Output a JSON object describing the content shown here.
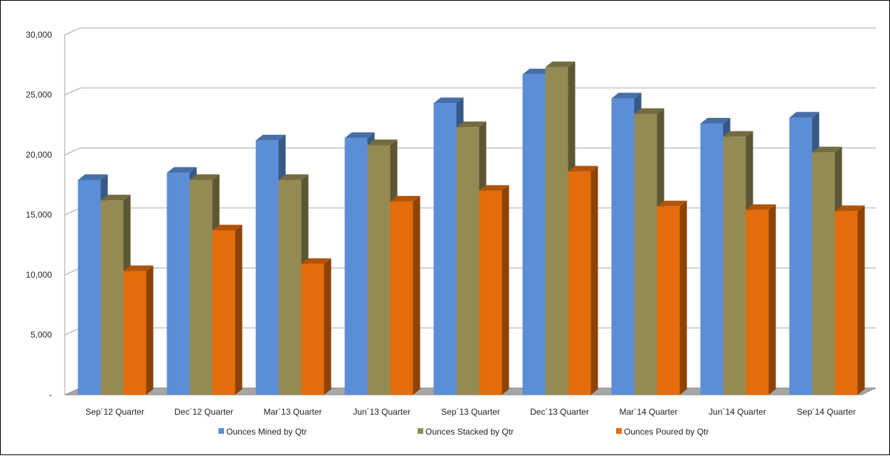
{
  "chart_data": {
    "type": "bar",
    "title": "",
    "xlabel": "",
    "ylabel": "",
    "ylim": [
      0,
      30000
    ],
    "yticks": [
      0,
      5000,
      10000,
      15000,
      20000,
      25000,
      30000
    ],
    "ytick_labels": [
      "-",
      "5,000",
      "10,000",
      "15,000",
      "20,000",
      "25,000",
      "30,000"
    ],
    "grid": true,
    "three_d": true,
    "legend_position": "bottom",
    "categories": [
      "Sep´12 Quarter",
      "Dec´12 Quarter",
      "Mar´13 Quarter",
      "Jun´13 Quarter",
      "Sep´13 Quarter",
      "Dec´13 Quarter",
      "Mar´14 Quarter",
      "Jun´14 Quarter",
      "Sep´14 Quarter"
    ],
    "series": [
      {
        "name": "Ounces Mined by Qtr",
        "color": "#5B8ED6",
        "values": [
          17900,
          18500,
          21200,
          21400,
          24300,
          26700,
          24700,
          22600,
          23100
        ]
      },
      {
        "name": "Ounces Stacked by Qtr",
        "color": "#948B54",
        "values": [
          16200,
          17900,
          17900,
          20800,
          22300,
          27300,
          23400,
          21500,
          20200
        ]
      },
      {
        "name": "Ounces Poured by Qtr",
        "color": "#E46C0A",
        "values": [
          10300,
          13700,
          10900,
          16100,
          17000,
          18600,
          15700,
          15400,
          15300
        ]
      }
    ]
  }
}
